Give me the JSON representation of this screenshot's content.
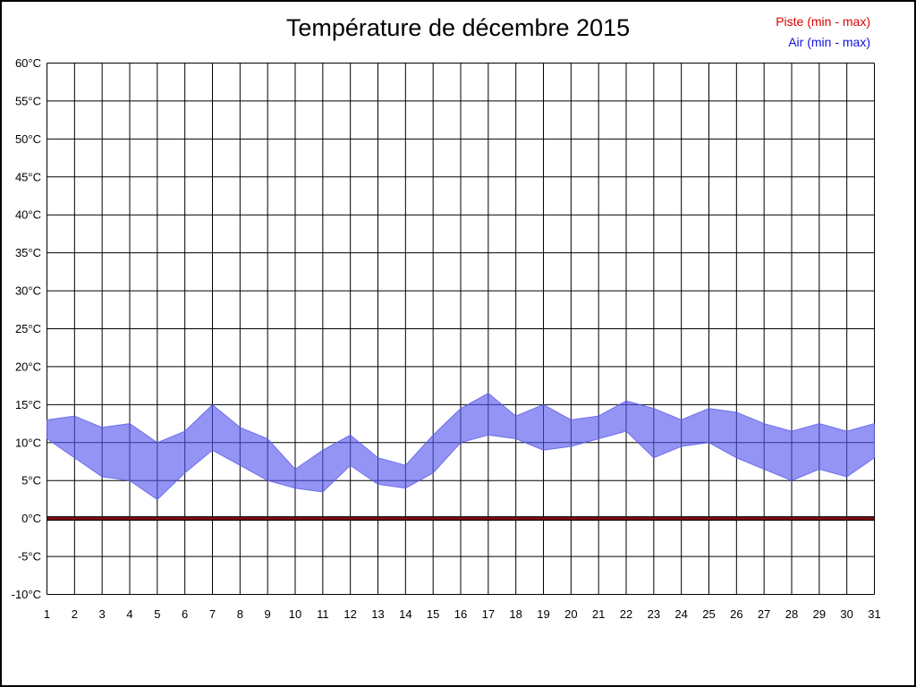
{
  "page": {
    "title": "Température de décembre 2015"
  },
  "legend": {
    "piste_label": "Piste (min - max)",
    "piste_color": "#dd0000",
    "air_label": "Air (min - max)",
    "air_color": "#1111dd"
  },
  "chart_data": {
    "type": "area",
    "title": "Température de décembre 2015",
    "xlabel": "",
    "ylabel": "",
    "grid": true,
    "legend_position": "top-right",
    "xlim": [
      1,
      31
    ],
    "ylim": [
      -10,
      60
    ],
    "x": [
      1,
      2,
      3,
      4,
      5,
      6,
      7,
      8,
      9,
      10,
      11,
      12,
      13,
      14,
      15,
      16,
      17,
      18,
      19,
      20,
      21,
      22,
      23,
      24,
      25,
      26,
      27,
      28,
      29,
      30,
      31
    ],
    "x_tick_labels": [
      "1",
      "2",
      "3",
      "4",
      "5",
      "6",
      "7",
      "8",
      "9",
      "10",
      "11",
      "12",
      "13",
      "14",
      "15",
      "16",
      "17",
      "18",
      "19",
      "20",
      "21",
      "22",
      "23",
      "24",
      "25",
      "26",
      "27",
      "28",
      "29",
      "30",
      "31"
    ],
    "y_ticks": [
      60,
      55,
      50,
      45,
      40,
      35,
      30,
      25,
      20,
      15,
      10,
      5,
      0,
      -5,
      -10
    ],
    "y_tick_labels": [
      "60°C",
      "55°C",
      "50°C",
      "45°C",
      "40°C",
      "35°C",
      "30°C",
      "25°C",
      "20°C",
      "15°C",
      "10°C",
      "5°C",
      "0°C",
      "-5°C",
      "-10°C"
    ],
    "series": [
      {
        "name": "Air (min - max)",
        "kind": "band",
        "fill": "rgba(82,82,238,0.62)",
        "edge": "rgba(95,95,235,0.85)",
        "max": [
          13,
          13.5,
          12,
          12.5,
          10,
          11.5,
          15,
          12,
          10.5,
          6.5,
          9,
          11,
          8,
          7,
          11,
          14.5,
          16.5,
          13.5,
          15,
          13,
          13.5,
          15.5,
          14.5,
          13,
          14.5,
          14,
          12.5,
          11.5,
          12.5,
          11.5,
          12.5
        ],
        "min": [
          10.5,
          8,
          5.5,
          5,
          2.5,
          6,
          9,
          7,
          5,
          4,
          3.5,
          7,
          4.5,
          4,
          6,
          10,
          11,
          10.5,
          9,
          9.5,
          10.5,
          11.5,
          8,
          9.5,
          10,
          8,
          6.5,
          5,
          6.5,
          5.5,
          8
        ]
      },
      {
        "name": "Piste (min - max)",
        "kind": "band",
        "fill": "#7c0d0d",
        "edge": "#000000",
        "max": [
          0,
          0,
          0,
          0,
          0,
          0,
          0,
          0,
          0,
          0,
          0,
          0,
          0,
          0,
          0,
          0,
          0,
          0,
          0,
          0,
          0,
          0,
          0,
          0,
          0,
          0,
          0,
          0,
          0,
          0,
          0
        ],
        "min": [
          0,
          0,
          0,
          0,
          0,
          0,
          0,
          0,
          0,
          0,
          0,
          0,
          0,
          0,
          0,
          0,
          0,
          0,
          0,
          0,
          0,
          0,
          0,
          0,
          0,
          0,
          0,
          0,
          0,
          0,
          0
        ]
      }
    ]
  }
}
